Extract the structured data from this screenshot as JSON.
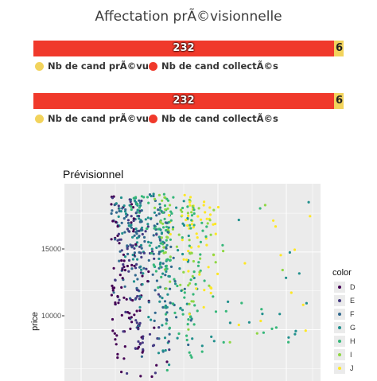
{
  "header": {
    "title": "Affectation prÃ©visionnelle"
  },
  "bars": [
    {
      "value_main": "232",
      "value_small": "6",
      "main": 232,
      "small": 6
    },
    {
      "value_main": "232",
      "value_small": "6",
      "main": 232,
      "small": 6
    }
  ],
  "legend": {
    "prevus_label": "Nb de cand prÃ©vus",
    "collectes_label": "Nb de cand collectÃ©s",
    "prevus_color": "#f2d35c",
    "collectes_color": "#f0392b"
  },
  "scatter": {
    "title": "Prévisionnel",
    "ylabel": "price",
    "ytick_15000": "15000",
    "ytick_10000": "10000",
    "legend_title": "color",
    "colors": [
      {
        "label": "D",
        "hex": "#440154"
      },
      {
        "label": "E",
        "hex": "#443a83"
      },
      {
        "label": "F",
        "hex": "#31688e"
      },
      {
        "label": "G",
        "hex": "#21908d"
      },
      {
        "label": "H",
        "hex": "#35b779"
      },
      {
        "label": "I",
        "hex": "#8fd744"
      },
      {
        "label": "J",
        "hex": "#fde725"
      }
    ]
  },
  "chart_data": {
    "type": "scatter",
    "title": "Prévisionnel",
    "xlabel": "",
    "ylabel": "price",
    "yticks": [
      10000,
      15000
    ],
    "ylim": [
      6700,
      19400
    ],
    "grid": true,
    "legend_title": "color",
    "legend_position": "right",
    "series": [
      {
        "name": "D"
      },
      {
        "name": "E"
      },
      {
        "name": "F"
      },
      {
        "name": "G"
      },
      {
        "name": "H"
      },
      {
        "name": "I"
      },
      {
        "name": "J"
      }
    ]
  }
}
